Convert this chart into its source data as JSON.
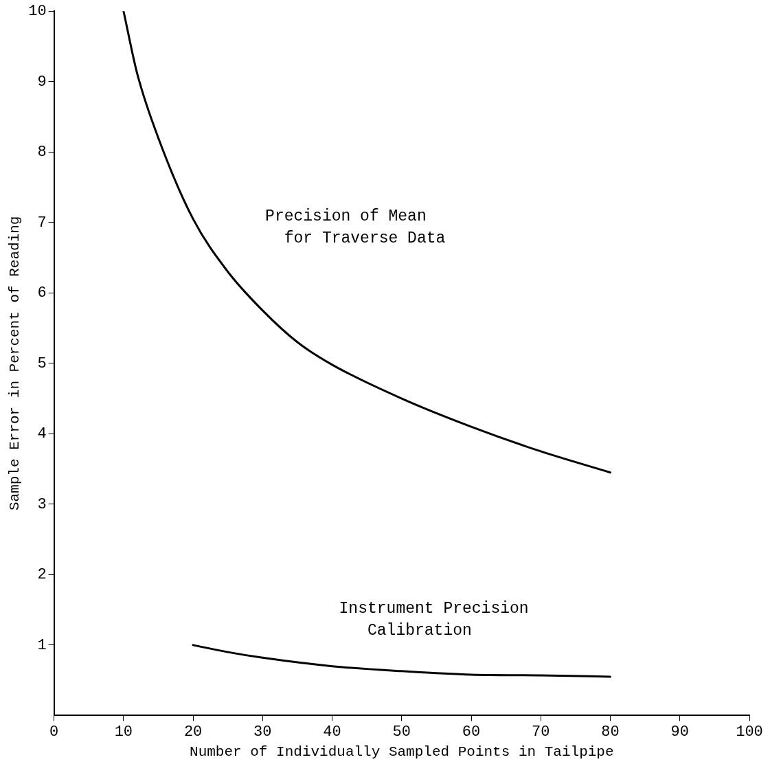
{
  "chart_data": {
    "type": "line",
    "xlabel": "Number of Individually Sampled Points in Tailpipe",
    "ylabel": "Sample Error in Percent of Reading",
    "xlim": [
      0,
      100
    ],
    "xticks": [
      0,
      10,
      20,
      30,
      40,
      50,
      60,
      70,
      80,
      90,
      100
    ],
    "ylim": [
      0,
      10
    ],
    "yticks": [
      1,
      2,
      3,
      4,
      5,
      6,
      7,
      8,
      9,
      10
    ],
    "grid": false,
    "legend": false,
    "marker": "none",
    "line_style": "solid",
    "series": [
      {
        "name": "Precision of Mean\n  for Traverse Data",
        "color": "#000000",
        "x": [
          10,
          12,
          15,
          20,
          25,
          30,
          35,
          40,
          50,
          60,
          70,
          80
        ],
        "values": [
          10,
          9.1,
          8.2,
          7.05,
          6.3,
          5.75,
          5.3,
          4.98,
          4.5,
          4.1,
          3.75,
          3.45
        ]
      },
      {
        "name": "Instrument Precision\n   Calibration",
        "color": "#000000",
        "x": [
          20,
          25,
          30,
          40,
          50,
          60,
          70,
          80
        ],
        "values": [
          1.0,
          0.9,
          0.82,
          0.7,
          0.63,
          0.58,
          0.57,
          0.55
        ]
      }
    ]
  }
}
